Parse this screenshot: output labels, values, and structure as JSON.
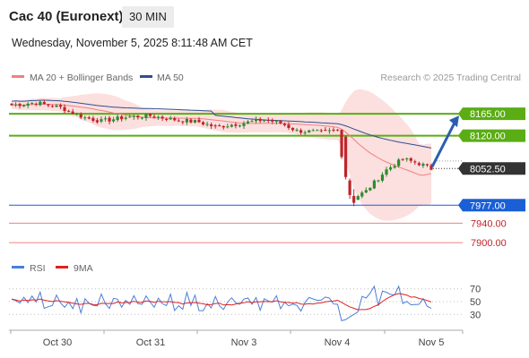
{
  "header": {
    "title": "Cac 40 (Euronext)",
    "timeframe": "30 MIN"
  },
  "datetime": "Wednesday, November 5, 2025 8:11:48 AM CET",
  "legend": {
    "ma20_bb": "MA 20 + Bollinger Bands",
    "ma50": "MA 50",
    "credit": "Research © 2025 Trading Central"
  },
  "rsi_legend": {
    "rsi": "RSI",
    "ma9": "9MA"
  },
  "colors": {
    "up": "#2e8b2e",
    "down": "#c0242a",
    "ma20": "#f08080",
    "ma50": "#2f4f8f",
    "resistance": "#5aad14",
    "support": "#1a5fd6",
    "faint": "#f08080",
    "rsi": "#4a7fd8",
    "rsi_ma": "#e02020",
    "band": "#fcd9d9"
  },
  "chart_data": {
    "type": "candlestick",
    "x_labels": [
      "Oct 30",
      "Oct 31",
      "Nov 3",
      "Nov 4",
      "Nov 5"
    ],
    "ylim": [
      7880,
      8215
    ],
    "current_price": 8052.5,
    "levels": [
      {
        "value": 8165.0,
        "label": "8165.00",
        "kind": "resistance"
      },
      {
        "value": 8120.0,
        "label": "8120.00",
        "kind": "resistance"
      },
      {
        "value": 7977.0,
        "label": "7977.00",
        "kind": "support"
      },
      {
        "value": 7940.0,
        "label": "7940.00",
        "kind": "faint"
      },
      {
        "value": 7900.0,
        "label": "7900.00",
        "kind": "faint"
      }
    ],
    "current_label": "8052.50",
    "target": 8165.0,
    "rsi": {
      "levels": [
        70,
        50,
        30
      ],
      "level_labels": [
        "70",
        "50",
        "30"
      ],
      "ylim": [
        15,
        85
      ]
    }
  }
}
